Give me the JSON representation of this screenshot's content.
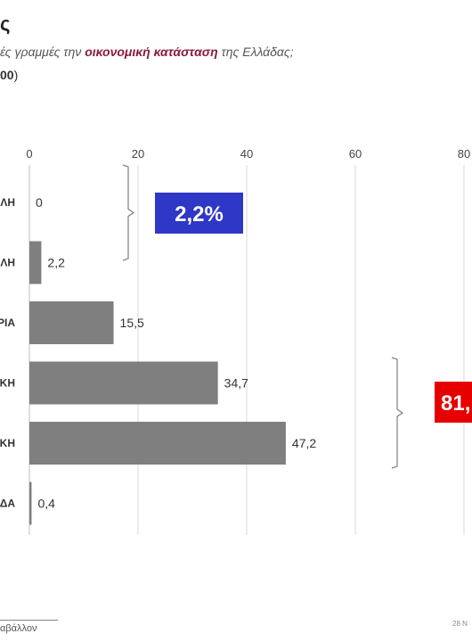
{
  "header": {
    "title": "ς",
    "subtitle_pre": "ές γραμμές την ",
    "subtitle_highlight": "οικονομική κατάσταση",
    "subtitle_post": " της Ελλάδας;",
    "base_bold": "00",
    "base_close": ")"
  },
  "chart_data": {
    "type": "bar",
    "orientation": "horizontal",
    "categories": [
      "ΛΗ",
      "ΛΗ",
      "ΡΙΑ",
      "ΚΗ",
      "ΚΗ",
      "ΔΑ"
    ],
    "values": [
      0,
      2.2,
      15.5,
      34.7,
      47.2,
      0.4
    ],
    "value_labels": [
      "0",
      "2,2",
      "15,5",
      "34,7",
      "47,2",
      "0,4"
    ],
    "xlim": [
      0,
      80
    ],
    "xticks": [
      0,
      20,
      40,
      60,
      80
    ],
    "xtick_labels": [
      "0",
      "20",
      "40",
      "60",
      "80"
    ],
    "grid": true,
    "bar_color": "#7f7f7f",
    "annotations": [
      {
        "label": "2,2%",
        "spans": [
          0,
          1
        ],
        "color": "#2e37c6"
      },
      {
        "label": "81,",
        "spans": [
          3,
          4
        ],
        "color": "#e60000"
      }
    ]
  },
  "footer": {
    "source": "αβάλλον",
    "date": "28 Ν"
  }
}
